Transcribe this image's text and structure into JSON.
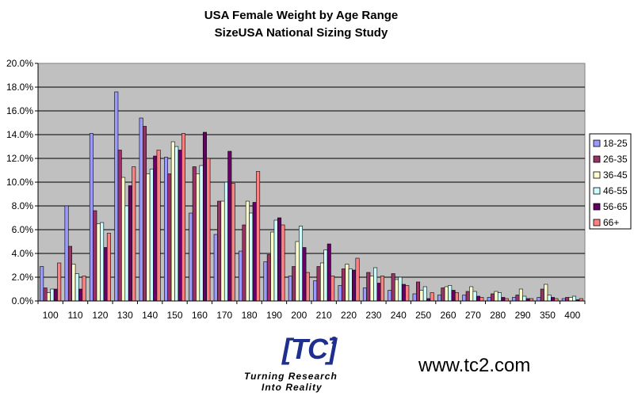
{
  "chart_data": {
    "type": "bar",
    "title": "USA Female Weight by Age Range",
    "subtitle": "SizeUSA National Sizing Study",
    "xlabel": "",
    "ylabel": "",
    "ylim": [
      0,
      20
    ],
    "yticks": [
      "0.0%",
      "2.0%",
      "4.0%",
      "6.0%",
      "8.0%",
      "10.0%",
      "12.0%",
      "14.0%",
      "16.0%",
      "18.0%",
      "20.0%"
    ],
    "grid": true,
    "legend_position": "right",
    "categories": [
      "100",
      "110",
      "120",
      "130",
      "140",
      "150",
      "160",
      "170",
      "180",
      "190",
      "200",
      "210",
      "220",
      "230",
      "240",
      "250",
      "260",
      "270",
      "280",
      "290",
      "350",
      "400"
    ],
    "series": [
      {
        "name": "18-25",
        "color": "#9999ff",
        "values": [
          2.9,
          8.0,
          14.1,
          17.6,
          15.4,
          12.1,
          7.4,
          5.6,
          4.2,
          3.3,
          2.1,
          1.7,
          1.3,
          1.1,
          0.9,
          0.6,
          0.5,
          0.5,
          0.3,
          0.3,
          0.3,
          0.2
        ]
      },
      {
        "name": "26-35",
        "color": "#993366",
        "values": [
          1.1,
          4.6,
          7.6,
          12.7,
          14.7,
          10.7,
          11.3,
          8.4,
          6.4,
          3.9,
          2.9,
          2.9,
          2.7,
          2.4,
          2.3,
          1.6,
          1.1,
          0.8,
          0.6,
          0.5,
          1.0,
          0.3
        ]
      },
      {
        "name": "36-45",
        "color": "#ffffcc",
        "values": [
          0.7,
          3.1,
          6.5,
          10.4,
          10.7,
          13.4,
          10.7,
          8.4,
          8.4,
          5.8,
          5.0,
          3.2,
          3.1,
          2.1,
          1.8,
          0.9,
          1.2,
          1.2,
          0.8,
          1.0,
          1.4,
          0.3
        ]
      },
      {
        "name": "46-55",
        "color": "#ccffff",
        "values": [
          1.0,
          2.3,
          6.6,
          8.0,
          11.1,
          13.0,
          11.4,
          10.0,
          7.4,
          6.8,
          6.3,
          4.3,
          2.7,
          2.8,
          2.0,
          1.2,
          1.3,
          0.8,
          0.7,
          0.4,
          0.5,
          0.4
        ]
      },
      {
        "name": "56-65",
        "color": "#660066",
        "values": [
          1.0,
          1.0,
          4.5,
          9.7,
          12.2,
          12.7,
          14.2,
          12.6,
          8.3,
          7.0,
          4.5,
          4.8,
          2.6,
          1.5,
          1.4,
          0.2,
          0.9,
          0.4,
          0.3,
          0.2,
          0.3,
          0.1
        ]
      },
      {
        "name": "66+",
        "color": "#ff8080",
        "values": [
          3.2,
          2.1,
          5.7,
          11.3,
          12.7,
          14.1,
          12.0,
          9.9,
          10.9,
          6.4,
          2.4,
          2.1,
          3.6,
          2.1,
          1.3,
          0.7,
          0.7,
          0.3,
          0.2,
          0.2,
          0.2,
          0.2
        ]
      }
    ]
  },
  "footer": {
    "logo_mark": "[TC]",
    "logo_superscript": "2",
    "tagline_line1": "Turning Research",
    "tagline_line2": "Into Reality",
    "website": "www.tc2.com"
  }
}
